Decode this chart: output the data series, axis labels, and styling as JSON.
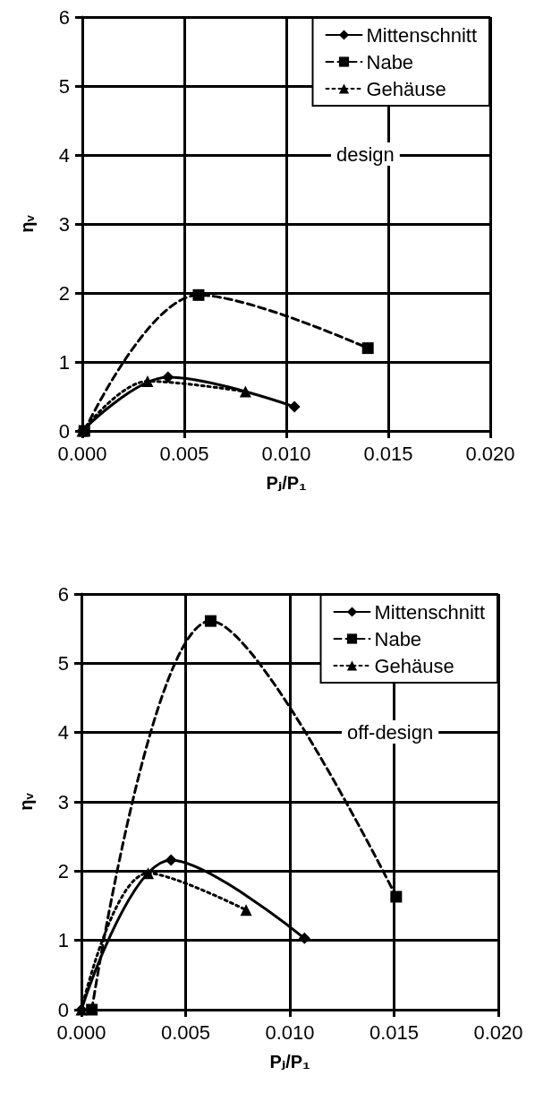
{
  "chart_data": [
    {
      "type": "line",
      "xlabel": "Pⱼ/P₁",
      "ylabel": "ηᵥ",
      "annotations": [
        "design"
      ],
      "legend": "top right",
      "grid": true,
      "xlim": [
        0,
        0.02
      ],
      "xticks": [
        {
          "value": 0,
          "label": "0.000"
        },
        {
          "value": 0.005,
          "label": "0.005"
        },
        {
          "value": 0.01,
          "label": "0.010"
        },
        {
          "value": 0.015,
          "label": "0.015"
        },
        {
          "value": 0.02,
          "label": "0.020"
        }
      ],
      "ylim": [
        0,
        6
      ],
      "yticks": [
        0,
        1,
        2,
        3,
        4,
        5,
        6
      ],
      "series": [
        {
          "name": "Mittenschnitt",
          "color": "#000000",
          "marker": "diamond",
          "line_style": "solid",
          "x": [
            0,
            0.0042,
            0.0104
          ],
          "values": [
            0,
            0.78,
            0.35
          ]
        },
        {
          "name": "Nabe",
          "color": "#000000",
          "marker": "square",
          "line_style": "dashed",
          "x": [
            0.0001,
            0.0057,
            0.014
          ],
          "values": [
            0,
            1.97,
            1.2
          ]
        },
        {
          "name": "Gehäuse",
          "color": "#000000",
          "marker": "triangle",
          "line_style": "dotted",
          "x": [
            0,
            0.0032,
            0.008
          ],
          "values": [
            0,
            0.72,
            0.57
          ]
        }
      ]
    },
    {
      "type": "line",
      "xlabel": "Pⱼ/P₁",
      "ylabel": "ηᵥ",
      "annotations": [
        "off-design"
      ],
      "legend": "top right",
      "grid": true,
      "xlim": [
        0,
        0.02
      ],
      "xticks": [
        {
          "value": 0,
          "label": "0.000"
        },
        {
          "value": 0.005,
          "label": "0.005"
        },
        {
          "value": 0.01,
          "label": "0.010"
        },
        {
          "value": 0.015,
          "label": "0.015"
        },
        {
          "value": 0.02,
          "label": "0.020"
        }
      ],
      "ylim": [
        0,
        6
      ],
      "yticks": [
        0,
        1,
        2,
        3,
        4,
        5,
        6
      ],
      "series": [
        {
          "name": "Mittenschnitt",
          "color": "#000000",
          "marker": "diamond",
          "line_style": "solid",
          "x": [
            0,
            0.0043,
            0.0107
          ],
          "values": [
            0,
            2.16,
            1.03
          ]
        },
        {
          "name": "Nabe",
          "color": "#000000",
          "marker": "square",
          "line_style": "dashed",
          "x": [
            0.0005,
            0.0062,
            0.0151
          ],
          "values": [
            0,
            5.61,
            1.63
          ]
        },
        {
          "name": "Gehäuse",
          "color": "#000000",
          "marker": "triangle",
          "line_style": "dotted",
          "x": [
            0,
            0.0032,
            0.0079
          ],
          "values": [
            0,
            1.97,
            1.44
          ]
        }
      ]
    }
  ]
}
